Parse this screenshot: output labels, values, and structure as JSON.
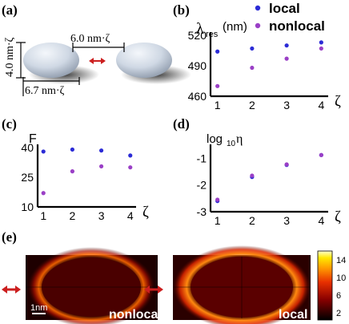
{
  "panel_labels": {
    "a": "(a)",
    "b": "(b)",
    "c": "(c)",
    "d": "(d)",
    "e": "(e)"
  },
  "schematic": {
    "gap_label": "6.0 nm·ζ",
    "height_label": "4.0 nm·ζ",
    "width_label": "6.7 nm·ζ"
  },
  "legend": {
    "local": "local",
    "nonlocal": "nonlocal"
  },
  "colors": {
    "local": "#2b2bd6",
    "nonlocal": "#9a3fc6",
    "axis": "#000000"
  },
  "field_maps": {
    "left_label": "nonlocal",
    "right_label": "local",
    "scale_label": "1nm",
    "colorbar_ticks": [
      "14",
      "10",
      "6",
      "2"
    ],
    "colorbar_range": [
      0,
      15
    ]
  },
  "chart_data": [
    {
      "type": "scatter",
      "title": "λres (nm)",
      "ylabel_main": "λ",
      "ylabel_sub": "res",
      "ylabel_unit": "(nm)",
      "xlabel": "ζ",
      "x": [
        1,
        2,
        3,
        4
      ],
      "xlim": [
        0.8,
        4.2
      ],
      "ylim": [
        460,
        520
      ],
      "yticks": [
        460,
        490,
        520
      ],
      "series": [
        {
          "name": "local",
          "values": [
            504,
            507,
            510,
            513
          ]
        },
        {
          "name": "nonlocal",
          "values": [
            470,
            488,
            497,
            507
          ]
        }
      ]
    },
    {
      "type": "scatter",
      "title": "F",
      "xlabel": "ζ",
      "x": [
        1,
        2,
        3,
        4
      ],
      "xlim": [
        0.8,
        4.2
      ],
      "ylim": [
        10,
        40
      ],
      "yticks": [
        10,
        25,
        40
      ],
      "series": [
        {
          "name": "local",
          "values": [
            38,
            39,
            38.5,
            36
          ]
        },
        {
          "name": "nonlocal",
          "values": [
            17,
            28,
            30.5,
            30
          ]
        }
      ]
    },
    {
      "type": "scatter",
      "title": "log10η",
      "ylabel_main": "log",
      "ylabel_sub": "10",
      "ylabel_unit": "η",
      "xlabel": "ζ",
      "x": [
        1,
        2,
        3,
        4
      ],
      "xlim": [
        0.8,
        4.2
      ],
      "ylim": [
        -3,
        -0.6
      ],
      "yticks": [
        -3,
        -2,
        -1
      ],
      "series": [
        {
          "name": "local",
          "values": [
            -2.6,
            -1.7,
            -1.25,
            -0.88
          ]
        },
        {
          "name": "nonlocal",
          "values": [
            -2.55,
            -1.65,
            -1.23,
            -0.88
          ]
        }
      ]
    }
  ]
}
